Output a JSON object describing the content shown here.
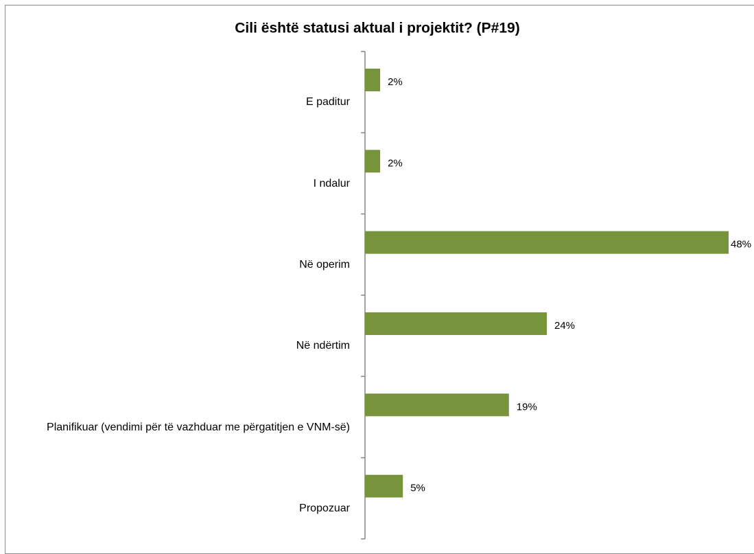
{
  "chart_data": {
    "type": "bar",
    "orientation": "horizontal",
    "title": "Cili është statusi aktual i projektit? (P#19)",
    "categories": [
      "E paditur",
      "I ndalur",
      "Në operim",
      "Në ndërtim",
      "Planifikuar (vendimi për të vazhduar me përgatitjen e VNM-së)",
      "Propozuar"
    ],
    "values": [
      2,
      2,
      48,
      24,
      19,
      5
    ],
    "value_labels": [
      "2%",
      "2%",
      "48%",
      "24%",
      "19%",
      "5%"
    ],
    "color": "#77933c"
  }
}
